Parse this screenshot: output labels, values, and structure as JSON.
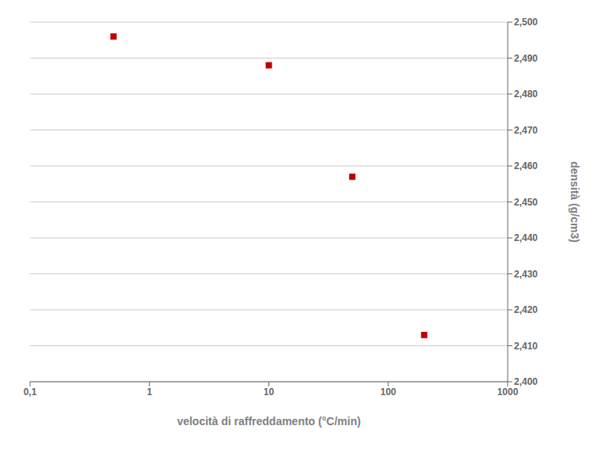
{
  "chart_data": {
    "type": "scatter",
    "x": [
      0.5,
      10,
      50,
      200
    ],
    "values": [
      2.496,
      2.488,
      2.457,
      2.413
    ],
    "color": "#c00000",
    "marker": "square",
    "xlabel": "velocità di raffreddamento (°C/min)",
    "ylabel": "densità (g/cm3)",
    "log": "x",
    "xlim": [
      0.1,
      1000
    ],
    "ylim": [
      2.4,
      2.5
    ],
    "xticks": [
      {
        "value": 0.1,
        "label": "0,1"
      },
      1,
      10,
      100,
      1000
    ],
    "yticks": [
      {
        "value": 2.4,
        "label": "2,400"
      },
      {
        "value": 2.41,
        "label": "2,410"
      },
      {
        "value": 2.42,
        "label": "2,420"
      },
      {
        "value": 2.43,
        "label": "2,430"
      },
      {
        "value": 2.44,
        "label": "2,440"
      },
      {
        "value": 2.45,
        "label": "2,450"
      },
      {
        "value": 2.46,
        "label": "2,460"
      },
      {
        "value": 2.47,
        "label": "2,470"
      },
      {
        "value": 2.48,
        "label": "2,480"
      },
      {
        "value": 2.49,
        "label": "2,490"
      },
      {
        "value": 2.5,
        "label": "2,500"
      }
    ],
    "grid": "y"
  }
}
